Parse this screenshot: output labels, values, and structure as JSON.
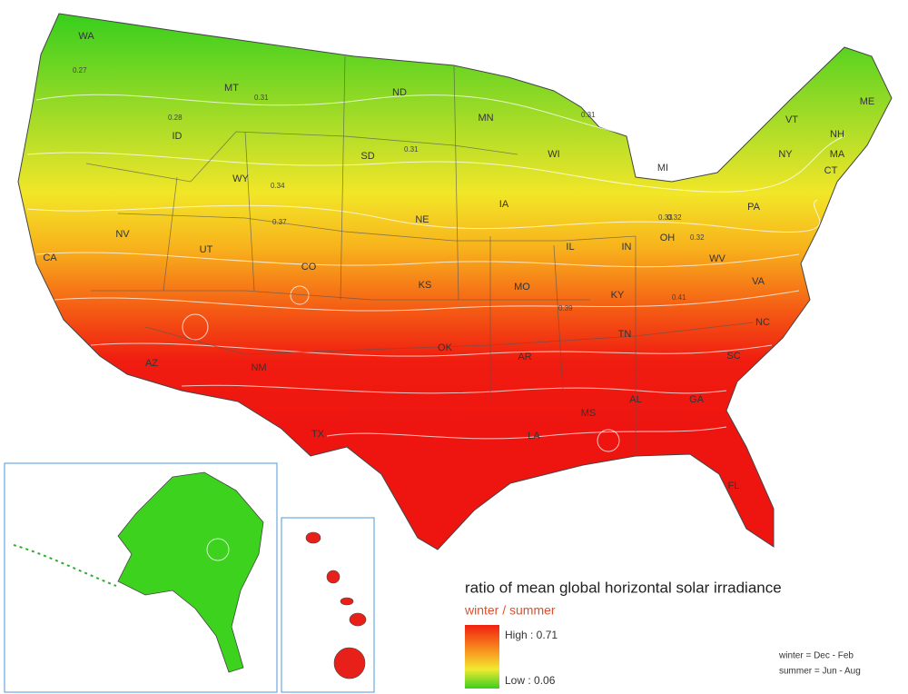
{
  "title": "ratio of mean global horizontal solar irradiance",
  "legend": {
    "subtitle": "winter / summer",
    "high": "High : 0.71",
    "low": "Low : 0.06"
  },
  "notes": [
    "winter = Dec - Feb",
    "summer = Jun - Aug"
  ],
  "state_labels": [
    "WA",
    "MT",
    "ID",
    "ND",
    "MN",
    "SD",
    "WY",
    "WI",
    "MI",
    "NE",
    "IA",
    "NY",
    "ME",
    "VT",
    "NH",
    "MA",
    "CT",
    "PA",
    "OH",
    "IN",
    "IL",
    "NV",
    "CA",
    "UT",
    "CO",
    "KS",
    "MO",
    "KY",
    "WV",
    "VA",
    "TN",
    "NC",
    "OK",
    "AR",
    "AZ",
    "NM",
    "TX",
    "LA",
    "MS",
    "AL",
    "GA",
    "SC",
    "FL"
  ],
  "contour_labels": [
    "0.27",
    "0.28",
    "0.31",
    "0.32",
    "0.31",
    "0.34",
    "0.31",
    "0.37",
    "0.32",
    "0.33",
    "0.41",
    "0.39"
  ]
}
